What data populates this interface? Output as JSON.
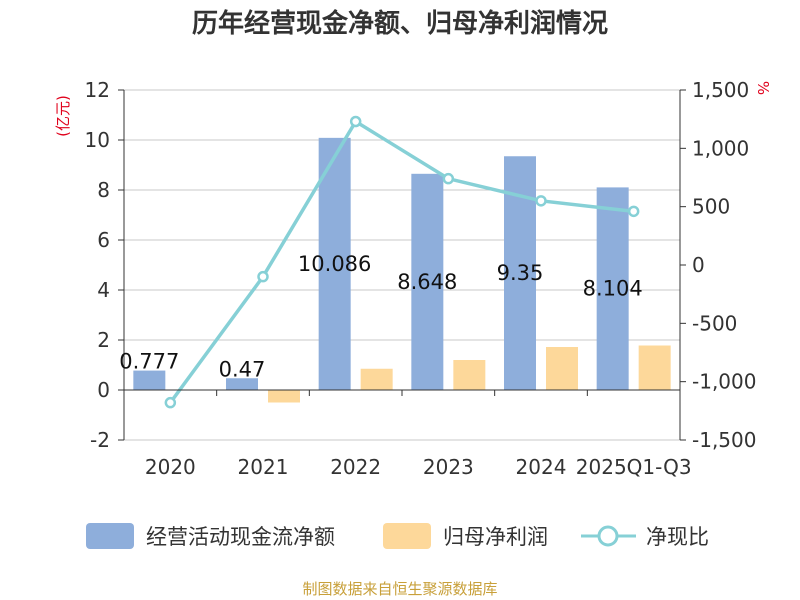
{
  "chart_data": {
    "type": "bar",
    "title": "历年经营现金净额、归母净利润情况",
    "categories": [
      "2020",
      "2021",
      "2022",
      "2023",
      "2024",
      "2025Q1-Q3"
    ],
    "left_axis": {
      "unit": "(亿元)",
      "min": -2,
      "max": 12,
      "ticks": [
        "-2",
        "0",
        "2",
        "4",
        "6",
        "8",
        "10",
        "12"
      ]
    },
    "right_axis": {
      "unit": "%",
      "min": -1500,
      "max": 1500,
      "ticks": [
        "-1,500",
        "-1,000",
        "-500",
        "0",
        "500",
        "1,000",
        "1,500"
      ]
    },
    "series": [
      {
        "name": "经营活动现金流净额",
        "type": "bar",
        "axis": "left",
        "color": "#8eaedb",
        "values": [
          0.777,
          0.47,
          10.086,
          8.648,
          9.35,
          8.104
        ],
        "labels": [
          "0.777",
          "0.47",
          "10.086",
          "8.648",
          "9.35",
          "8.104"
        ]
      },
      {
        "name": "归母净利润",
        "type": "bar",
        "axis": "left",
        "color": "#fdd89a",
        "values": [
          -0.02,
          -0.5,
          0.85,
          1.2,
          1.72,
          1.78
        ]
      },
      {
        "name": "净现比",
        "type": "line",
        "axis": "right",
        "color": "#86d0d6",
        "values": [
          -1180,
          -100,
          1230,
          740,
          550,
          460
        ]
      }
    ],
    "grid": true,
    "legend_position": "bottom"
  },
  "source": "制图数据来自恒生聚源数据库"
}
